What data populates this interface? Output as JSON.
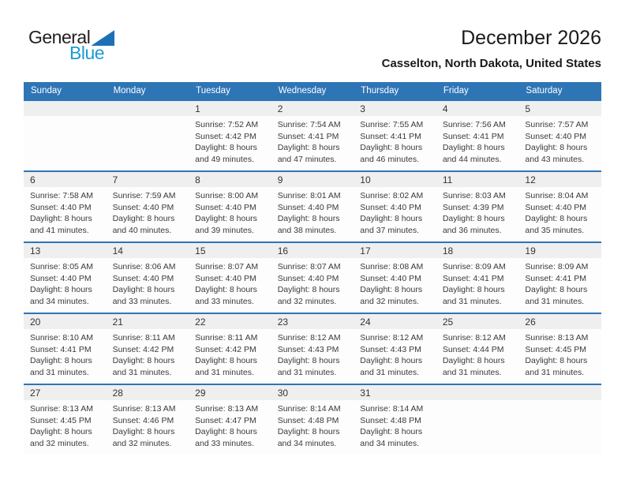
{
  "logo": {
    "part1": "General",
    "part2": "Blue"
  },
  "header": {
    "title": "December 2026",
    "subtitle": "Casselton, North Dakota, United States"
  },
  "labels": {
    "sunrise": "Sunrise:",
    "sunset": "Sunset:",
    "daylight": "Daylight:"
  },
  "colors": {
    "header_blue": "#2e75b6",
    "week_line_blue": "#2e75b6",
    "band_gray": "#efefef",
    "logo_blue": "#1c9ad6",
    "triangle_blue": "#1d70b7"
  },
  "calendar": {
    "weekday_headers": [
      "Sunday",
      "Monday",
      "Tuesday",
      "Wednesday",
      "Thursday",
      "Friday",
      "Saturday"
    ],
    "weeks": [
      [
        null,
        null,
        {
          "day": "1",
          "sunrise": "7:52 AM",
          "sunset": "4:42 PM",
          "daylight": "8 hours and 49 minutes."
        },
        {
          "day": "2",
          "sunrise": "7:54 AM",
          "sunset": "4:41 PM",
          "daylight": "8 hours and 47 minutes."
        },
        {
          "day": "3",
          "sunrise": "7:55 AM",
          "sunset": "4:41 PM",
          "daylight": "8 hours and 46 minutes."
        },
        {
          "day": "4",
          "sunrise": "7:56 AM",
          "sunset": "4:41 PM",
          "daylight": "8 hours and 44 minutes."
        },
        {
          "day": "5",
          "sunrise": "7:57 AM",
          "sunset": "4:40 PM",
          "daylight": "8 hours and 43 minutes."
        }
      ],
      [
        {
          "day": "6",
          "sunrise": "7:58 AM",
          "sunset": "4:40 PM",
          "daylight": "8 hours and 41 minutes."
        },
        {
          "day": "7",
          "sunrise": "7:59 AM",
          "sunset": "4:40 PM",
          "daylight": "8 hours and 40 minutes."
        },
        {
          "day": "8",
          "sunrise": "8:00 AM",
          "sunset": "4:40 PM",
          "daylight": "8 hours and 39 minutes."
        },
        {
          "day": "9",
          "sunrise": "8:01 AM",
          "sunset": "4:40 PM",
          "daylight": "8 hours and 38 minutes."
        },
        {
          "day": "10",
          "sunrise": "8:02 AM",
          "sunset": "4:40 PM",
          "daylight": "8 hours and 37 minutes."
        },
        {
          "day": "11",
          "sunrise": "8:03 AM",
          "sunset": "4:39 PM",
          "daylight": "8 hours and 36 minutes."
        },
        {
          "day": "12",
          "sunrise": "8:04 AM",
          "sunset": "4:40 PM",
          "daylight": "8 hours and 35 minutes."
        }
      ],
      [
        {
          "day": "13",
          "sunrise": "8:05 AM",
          "sunset": "4:40 PM",
          "daylight": "8 hours and 34 minutes."
        },
        {
          "day": "14",
          "sunrise": "8:06 AM",
          "sunset": "4:40 PM",
          "daylight": "8 hours and 33 minutes."
        },
        {
          "day": "15",
          "sunrise": "8:07 AM",
          "sunset": "4:40 PM",
          "daylight": "8 hours and 33 minutes."
        },
        {
          "day": "16",
          "sunrise": "8:07 AM",
          "sunset": "4:40 PM",
          "daylight": "8 hours and 32 minutes."
        },
        {
          "day": "17",
          "sunrise": "8:08 AM",
          "sunset": "4:40 PM",
          "daylight": "8 hours and 32 minutes."
        },
        {
          "day": "18",
          "sunrise": "8:09 AM",
          "sunset": "4:41 PM",
          "daylight": "8 hours and 31 minutes."
        },
        {
          "day": "19",
          "sunrise": "8:09 AM",
          "sunset": "4:41 PM",
          "daylight": "8 hours and 31 minutes."
        }
      ],
      [
        {
          "day": "20",
          "sunrise": "8:10 AM",
          "sunset": "4:41 PM",
          "daylight": "8 hours and 31 minutes."
        },
        {
          "day": "21",
          "sunrise": "8:11 AM",
          "sunset": "4:42 PM",
          "daylight": "8 hours and 31 minutes."
        },
        {
          "day": "22",
          "sunrise": "8:11 AM",
          "sunset": "4:42 PM",
          "daylight": "8 hours and 31 minutes."
        },
        {
          "day": "23",
          "sunrise": "8:12 AM",
          "sunset": "4:43 PM",
          "daylight": "8 hours and 31 minutes."
        },
        {
          "day": "24",
          "sunrise": "8:12 AM",
          "sunset": "4:43 PM",
          "daylight": "8 hours and 31 minutes."
        },
        {
          "day": "25",
          "sunrise": "8:12 AM",
          "sunset": "4:44 PM",
          "daylight": "8 hours and 31 minutes."
        },
        {
          "day": "26",
          "sunrise": "8:13 AM",
          "sunset": "4:45 PM",
          "daylight": "8 hours and 31 minutes."
        }
      ],
      [
        {
          "day": "27",
          "sunrise": "8:13 AM",
          "sunset": "4:45 PM",
          "daylight": "8 hours and 32 minutes."
        },
        {
          "day": "28",
          "sunrise": "8:13 AM",
          "sunset": "4:46 PM",
          "daylight": "8 hours and 32 minutes."
        },
        {
          "day": "29",
          "sunrise": "8:13 AM",
          "sunset": "4:47 PM",
          "daylight": "8 hours and 33 minutes."
        },
        {
          "day": "30",
          "sunrise": "8:14 AM",
          "sunset": "4:48 PM",
          "daylight": "8 hours and 34 minutes."
        },
        {
          "day": "31",
          "sunrise": "8:14 AM",
          "sunset": "4:48 PM",
          "daylight": "8 hours and 34 minutes."
        },
        null,
        null
      ]
    ]
  }
}
